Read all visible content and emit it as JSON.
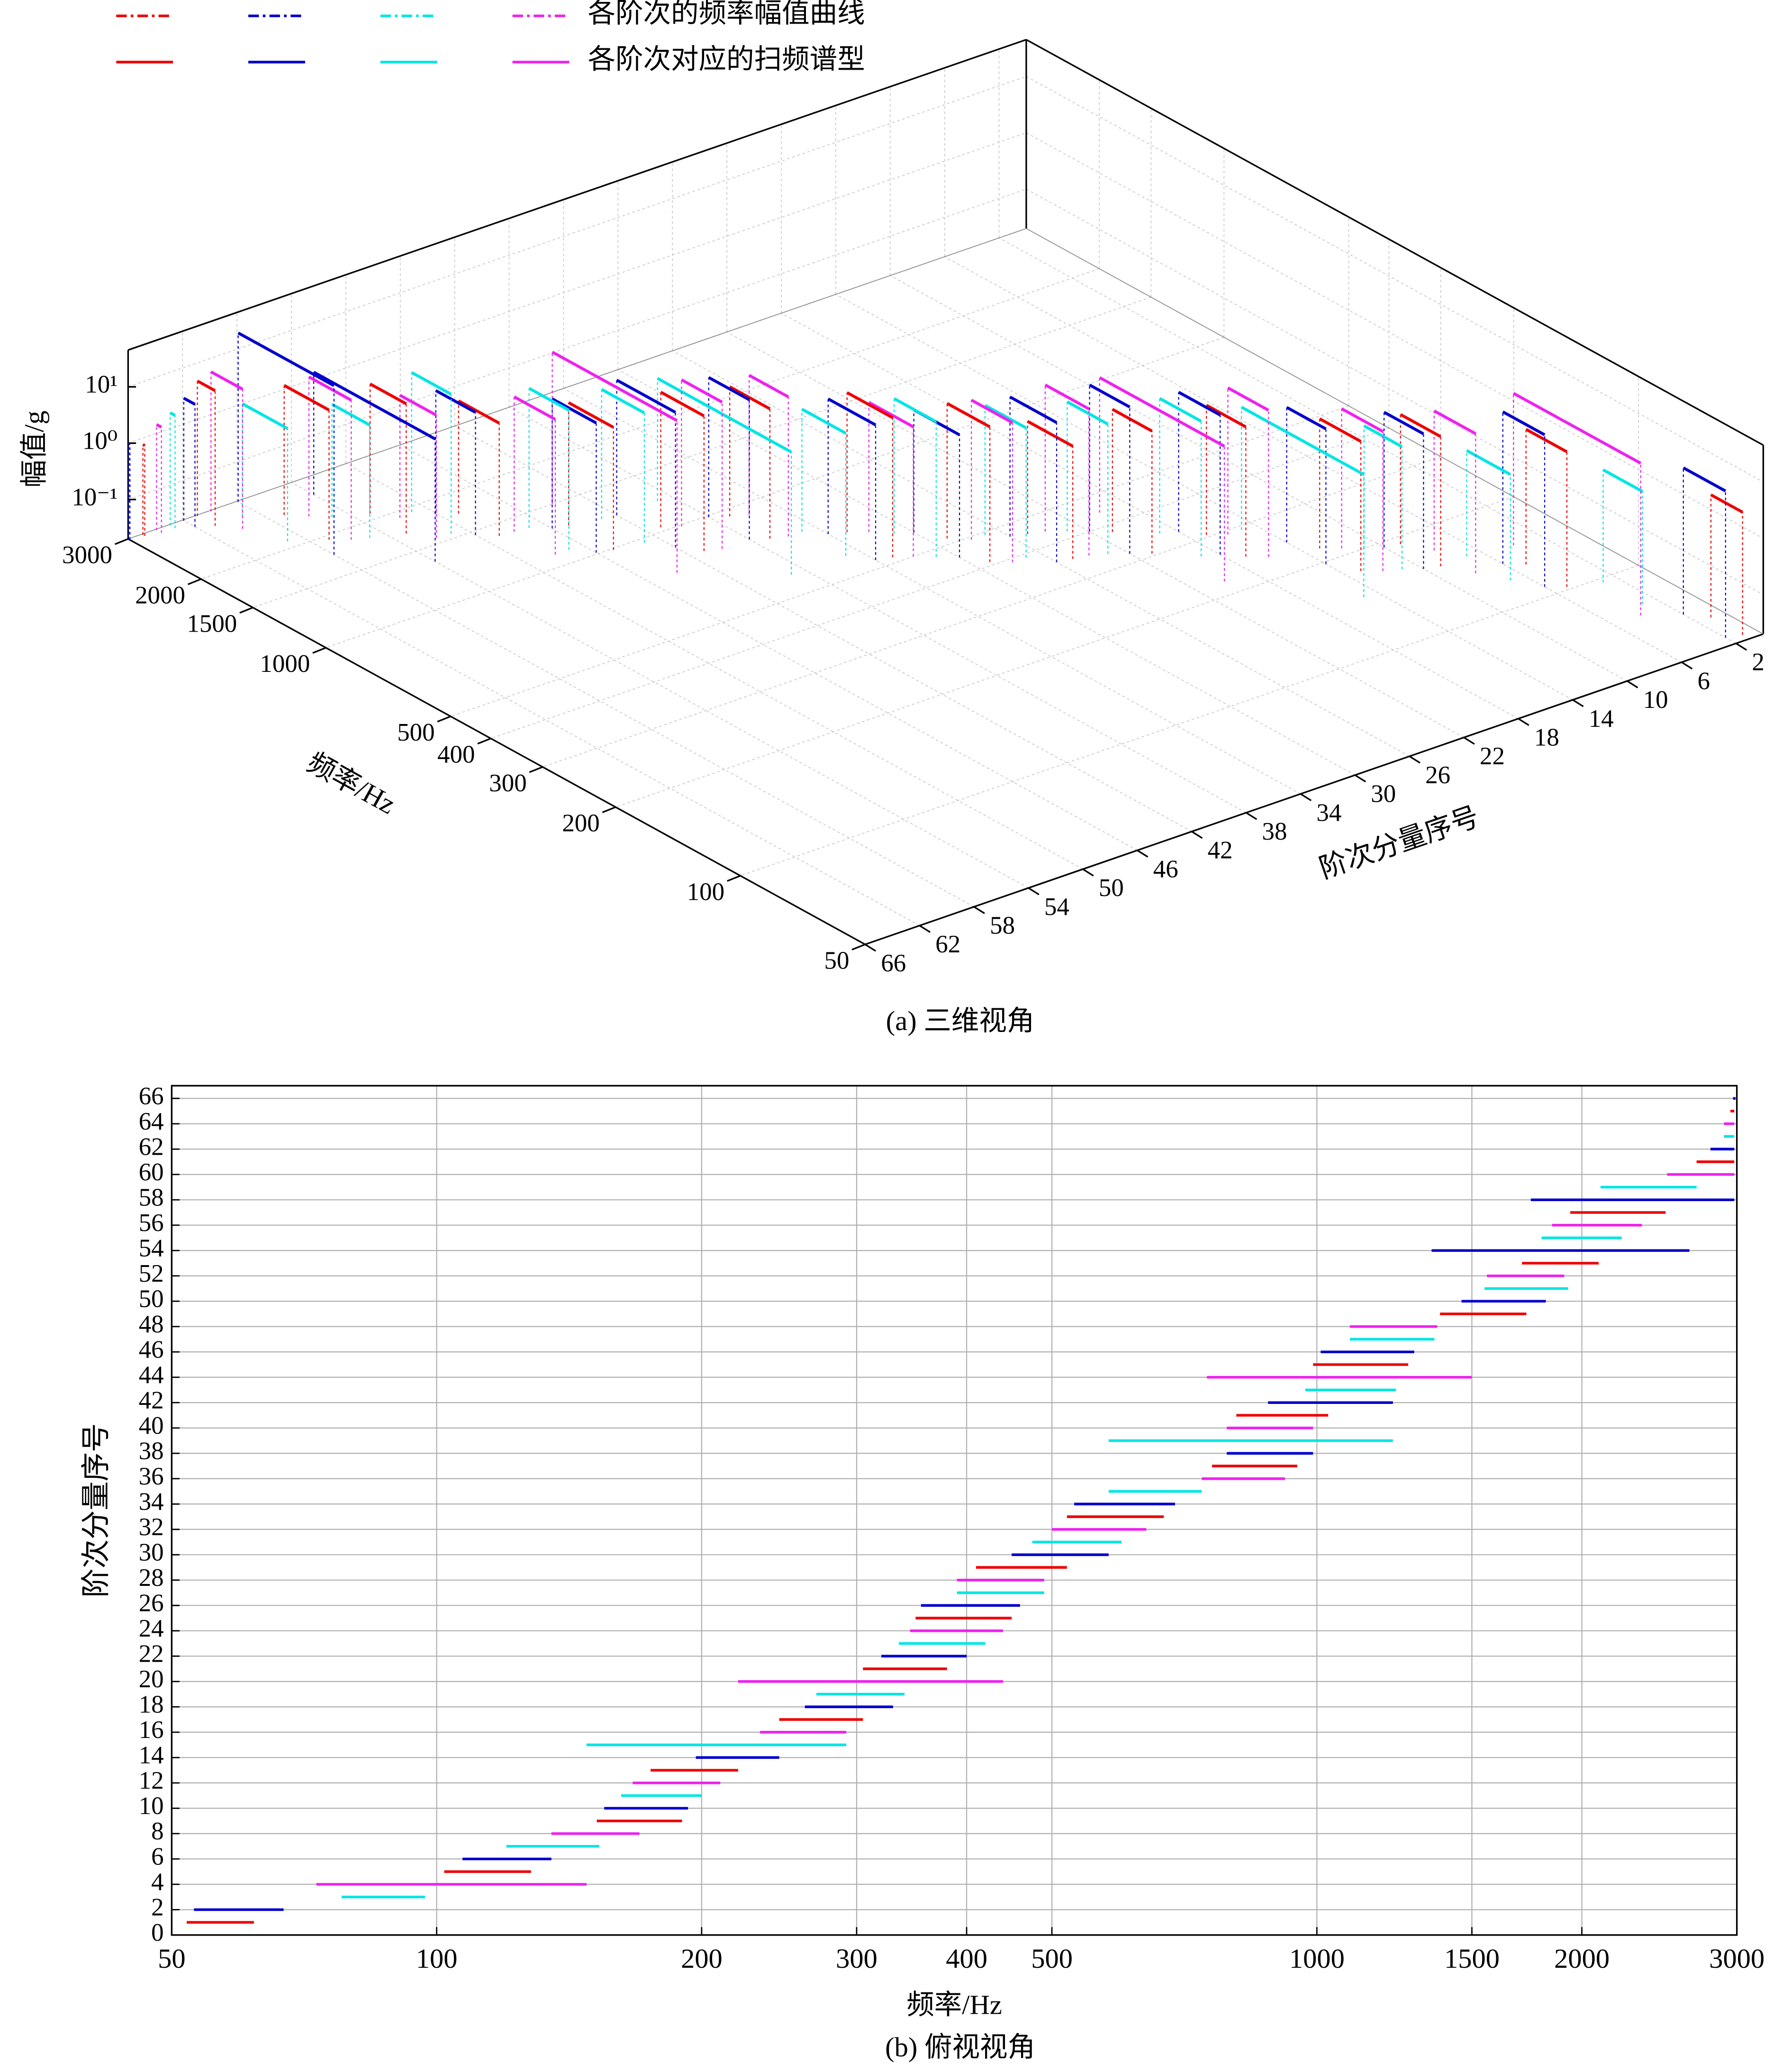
{
  "chart_data": [
    {
      "type": "line3d",
      "caption": "(a) 三维视角",
      "xlabel": "频率/Hz",
      "ylabel": "阶次分量序号",
      "zlabel": "幅值/g",
      "xlim": [
        50,
        3000
      ],
      "xticks": [
        50,
        100,
        200,
        300,
        400,
        500,
        1000,
        1500,
        2000,
        3000
      ],
      "xscale": "log",
      "ylim": [
        0,
        66
      ],
      "yticks": [
        2,
        6,
        10,
        14,
        18,
        22,
        26,
        30,
        34,
        38,
        42,
        46,
        50,
        54,
        58,
        62,
        66
      ],
      "zlim": [
        0.02,
        45
      ],
      "zscale": "log",
      "zticks": [
        {
          "value": 0.1,
          "label": "10⁻¹"
        },
        {
          "value": 1,
          "label": "10⁰"
        },
        {
          "value": 10,
          "label": "10¹"
        }
      ],
      "grid": true,
      "colors": [
        "#ee0000",
        "#0000cc",
        "#00e5e5",
        "#ee22ee"
      ],
      "legend": [
        {
          "name": null,
          "color": "#ee0000",
          "style": "dash-dot"
        },
        {
          "name": null,
          "color": "#0000cc",
          "style": "dash-dot"
        },
        {
          "name": null,
          "color": "#00e5e5",
          "style": "dash-dot"
        },
        {
          "name": "各阶次的频率幅值曲线",
          "color": "#ee22ee",
          "style": "dash-dot"
        },
        {
          "name": null,
          "color": "#ee0000",
          "style": "solid"
        },
        {
          "name": null,
          "color": "#0000cc",
          "style": "solid"
        },
        {
          "name": null,
          "color": "#00e5e5",
          "style": "solid"
        },
        {
          "name": "各阶次对应的扫频谱型",
          "color": "#ee22ee",
          "style": "solid"
        }
      ],
      "segments": [
        {
          "order": 1,
          "start": 52,
          "end": 62,
          "amplitude": 3
        },
        {
          "order": 2,
          "start": 53,
          "end": 67,
          "amplitude": 8
        },
        {
          "order": 3,
          "start": 78,
          "end": 97,
          "amplitude": 2
        },
        {
          "order": 4,
          "start": 73,
          "end": 148,
          "amplitude": 10
        },
        {
          "order": 5,
          "start": 102,
          "end": 128,
          "amplitude": 5
        },
        {
          "order": 6,
          "start": 107,
          "end": 135,
          "amplitude": 10
        },
        {
          "order": 7,
          "start": 120,
          "end": 153,
          "amplitude": 1.5
        },
        {
          "order": 8,
          "start": 135,
          "end": 170,
          "amplitude": 6
        },
        {
          "order": 9,
          "start": 152,
          "end": 190,
          "amplitude": 4
        },
        {
          "order": 10,
          "start": 155,
          "end": 193,
          "amplitude": 5
        },
        {
          "order": 11,
          "start": 162,
          "end": 200,
          "amplitude": 3
        },
        {
          "order": 12,
          "start": 167,
          "end": 210,
          "amplitude": 6
        },
        {
          "order": 13,
          "start": 175,
          "end": 220,
          "amplitude": 4
        },
        {
          "order": 14,
          "start": 197,
          "end": 245,
          "amplitude": 5
        },
        {
          "order": 15,
          "start": 148,
          "end": 292,
          "amplitude": 3
        },
        {
          "order": 16,
          "start": 233,
          "end": 292,
          "amplitude": 8
        },
        {
          "order": 17,
          "start": 245,
          "end": 305,
          "amplitude": 4
        },
        {
          "order": 18,
          "start": 262,
          "end": 330,
          "amplitude": 6
        },
        {
          "order": 19,
          "start": 270,
          "end": 340,
          "amplitude": 5
        },
        {
          "order": 20,
          "start": 220,
          "end": 440,
          "amplitude": 5
        },
        {
          "order": 21,
          "start": 305,
          "end": 380,
          "amplitude": 3
        },
        {
          "order": 22,
          "start": 320,
          "end": 400,
          "amplitude": 8
        },
        {
          "order": 23,
          "start": 335,
          "end": 420,
          "amplitude": 4
        },
        {
          "order": 24,
          "start": 345,
          "end": 440,
          "amplitude": 8
        },
        {
          "order": 25,
          "start": 350,
          "end": 450,
          "amplitude": 2
        },
        {
          "order": 26,
          "start": 355,
          "end": 460,
          "amplitude": 6
        },
        {
          "order": 27,
          "start": 390,
          "end": 490,
          "amplitude": 4
        },
        {
          "order": 28,
          "start": 390,
          "end": 490,
          "amplitude": 6
        },
        {
          "order": 29,
          "start": 410,
          "end": 520,
          "amplitude": 5
        },
        {
          "order": 30,
          "start": 450,
          "end": 580,
          "amplitude": 3
        },
        {
          "order": 31,
          "start": 475,
          "end": 600,
          "amplitude": 5
        },
        {
          "order": 32,
          "start": 500,
          "end": 640,
          "amplitude": 4
        },
        {
          "order": 33,
          "start": 520,
          "end": 670,
          "amplitude": 6
        },
        {
          "order": 34,
          "start": 530,
          "end": 690,
          "amplitude": 5
        },
        {
          "order": 35,
          "start": 580,
          "end": 740,
          "amplitude": 3
        },
        {
          "order": 36,
          "start": 740,
          "end": 920,
          "amplitude": 6
        },
        {
          "order": 37,
          "start": 760,
          "end": 950,
          "amplitude": 4
        },
        {
          "order": 38,
          "start": 790,
          "end": 990,
          "amplitude": 6
        },
        {
          "order": 39,
          "start": 580,
          "end": 1220,
          "amplitude": 3
        },
        {
          "order": 40,
          "start": 790,
          "end": 990,
          "amplitude": 8
        },
        {
          "order": 41,
          "start": 810,
          "end": 1030,
          "amplitude": 5
        },
        {
          "order": 42,
          "start": 880,
          "end": 1220,
          "amplitude": 5
        },
        {
          "order": 43,
          "start": 970,
          "end": 1230,
          "amplitude": 4
        },
        {
          "order": 44,
          "start": 750,
          "end": 1500,
          "amplitude": 10
        },
        {
          "order": 45,
          "start": 990,
          "end": 1270,
          "amplitude": 3
        },
        {
          "order": 46,
          "start": 1010,
          "end": 1290,
          "amplitude": 4
        },
        {
          "order": 47,
          "start": 1090,
          "end": 1360,
          "amplitude": 6
        },
        {
          "order": 48,
          "start": 1090,
          "end": 1370,
          "amplitude": 5
        },
        {
          "order": 49,
          "start": 1380,
          "end": 1730,
          "amplitude": 2
        },
        {
          "order": 50,
          "start": 1460,
          "end": 1820,
          "amplitude": 3
        },
        {
          "order": 51,
          "start": 1550,
          "end": 1930,
          "amplitude": 6
        },
        {
          "order": 52,
          "start": 1560,
          "end": 1910,
          "amplitude": 3
        },
        {
          "order": 53,
          "start": 1710,
          "end": 2090,
          "amplitude": 4
        },
        {
          "order": 54,
          "start": 1350,
          "end": 2650,
          "amplitude": 3
        },
        {
          "order": 55,
          "start": 1800,
          "end": 2220,
          "amplitude": 2
        },
        {
          "order": 56,
          "start": 1850,
          "end": 2340,
          "amplitude": 6
        },
        {
          "order": 57,
          "start": 1940,
          "end": 2490,
          "amplitude": 4
        },
        {
          "order": 58,
          "start": 1750,
          "end": 2980,
          "amplitude": 20
        },
        {
          "order": 59,
          "start": 2100,
          "end": 2700,
          "amplitude": 2
        },
        {
          "order": 60,
          "start": 2500,
          "end": 2980,
          "amplitude": 6
        },
        {
          "order": 61,
          "start": 2700,
          "end": 2980,
          "amplitude": 5
        },
        {
          "order": 62,
          "start": 2800,
          "end": 2980,
          "amplitude": 3
        },
        {
          "order": 63,
          "start": 2900,
          "end": 2980,
          "amplitude": 2
        },
        {
          "order": 64,
          "start": 2900,
          "end": 2980,
          "amplitude": 1.5
        },
        {
          "order": 65,
          "start": 2950,
          "end": 2980,
          "amplitude": 0.8
        },
        {
          "order": 66,
          "start": 2970,
          "end": 2990,
          "amplitude": 1
        }
      ]
    },
    {
      "type": "range",
      "caption": "(b) 俯视视角",
      "xlabel": "频率/Hz",
      "ylabel": "阶次分量序号",
      "xlim": [
        50,
        3000
      ],
      "xticks": [
        50,
        100,
        200,
        300,
        400,
        500,
        1000,
        1500,
        2000,
        3000
      ],
      "xscale": "log",
      "ylim": [
        0,
        67
      ],
      "yticks": [
        0,
        2,
        4,
        6,
        8,
        10,
        12,
        14,
        16,
        18,
        20,
        22,
        24,
        26,
        28,
        30,
        32,
        34,
        36,
        38,
        40,
        42,
        44,
        46,
        48,
        50,
        52,
        54,
        56,
        58,
        60,
        62,
        64,
        66
      ],
      "grid": true,
      "colors": [
        "#ee0000",
        "#0000cc",
        "#00e5e5",
        "#ee22ee"
      ],
      "segments": [
        {
          "order": 1,
          "start": 52,
          "end": 62
        },
        {
          "order": 2,
          "start": 53,
          "end": 67
        },
        {
          "order": 3,
          "start": 78,
          "end": 97
        },
        {
          "order": 4,
          "start": 73,
          "end": 148
        },
        {
          "order": 5,
          "start": 102,
          "end": 128
        },
        {
          "order": 6,
          "start": 107,
          "end": 135
        },
        {
          "order": 7,
          "start": 120,
          "end": 153
        },
        {
          "order": 8,
          "start": 135,
          "end": 170
        },
        {
          "order": 9,
          "start": 152,
          "end": 190
        },
        {
          "order": 10,
          "start": 155,
          "end": 193
        },
        {
          "order": 11,
          "start": 162,
          "end": 200
        },
        {
          "order": 12,
          "start": 167,
          "end": 210
        },
        {
          "order": 13,
          "start": 175,
          "end": 220
        },
        {
          "order": 14,
          "start": 197,
          "end": 245
        },
        {
          "order": 15,
          "start": 148,
          "end": 292
        },
        {
          "order": 16,
          "start": 233,
          "end": 292
        },
        {
          "order": 17,
          "start": 245,
          "end": 305
        },
        {
          "order": 18,
          "start": 262,
          "end": 330
        },
        {
          "order": 19,
          "start": 270,
          "end": 340
        },
        {
          "order": 20,
          "start": 220,
          "end": 440
        },
        {
          "order": 21,
          "start": 305,
          "end": 380
        },
        {
          "order": 22,
          "start": 320,
          "end": 400
        },
        {
          "order": 23,
          "start": 335,
          "end": 420
        },
        {
          "order": 24,
          "start": 345,
          "end": 440
        },
        {
          "order": 25,
          "start": 350,
          "end": 450
        },
        {
          "order": 26,
          "start": 355,
          "end": 460
        },
        {
          "order": 27,
          "start": 390,
          "end": 490
        },
        {
          "order": 28,
          "start": 390,
          "end": 490
        },
        {
          "order": 29,
          "start": 410,
          "end": 520
        },
        {
          "order": 30,
          "start": 450,
          "end": 580
        },
        {
          "order": 31,
          "start": 475,
          "end": 600
        },
        {
          "order": 32,
          "start": 500,
          "end": 640
        },
        {
          "order": 33,
          "start": 520,
          "end": 670
        },
        {
          "order": 34,
          "start": 530,
          "end": 690
        },
        {
          "order": 35,
          "start": 580,
          "end": 740
        },
        {
          "order": 36,
          "start": 740,
          "end": 920
        },
        {
          "order": 37,
          "start": 760,
          "end": 950
        },
        {
          "order": 38,
          "start": 790,
          "end": 990
        },
        {
          "order": 39,
          "start": 580,
          "end": 1220
        },
        {
          "order": 40,
          "start": 790,
          "end": 990
        },
        {
          "order": 41,
          "start": 810,
          "end": 1030
        },
        {
          "order": 42,
          "start": 880,
          "end": 1220
        },
        {
          "order": 43,
          "start": 970,
          "end": 1230
        },
        {
          "order": 44,
          "start": 750,
          "end": 1500
        },
        {
          "order": 45,
          "start": 990,
          "end": 1270
        },
        {
          "order": 46,
          "start": 1010,
          "end": 1290
        },
        {
          "order": 47,
          "start": 1090,
          "end": 1360
        },
        {
          "order": 48,
          "start": 1090,
          "end": 1370
        },
        {
          "order": 49,
          "start": 1380,
          "end": 1730
        },
        {
          "order": 50,
          "start": 1460,
          "end": 1820
        },
        {
          "order": 51,
          "start": 1550,
          "end": 1930
        },
        {
          "order": 52,
          "start": 1560,
          "end": 1910
        },
        {
          "order": 53,
          "start": 1710,
          "end": 2090
        },
        {
          "order": 54,
          "start": 1350,
          "end": 2650
        },
        {
          "order": 55,
          "start": 1800,
          "end": 2220
        },
        {
          "order": 56,
          "start": 1850,
          "end": 2340
        },
        {
          "order": 57,
          "start": 1940,
          "end": 2490
        },
        {
          "order": 58,
          "start": 1750,
          "end": 2980
        },
        {
          "order": 59,
          "start": 2100,
          "end": 2700
        },
        {
          "order": 60,
          "start": 2500,
          "end": 2980
        },
        {
          "order": 61,
          "start": 2700,
          "end": 2980
        },
        {
          "order": 62,
          "start": 2800,
          "end": 2980
        },
        {
          "order": 63,
          "start": 2900,
          "end": 2980
        },
        {
          "order": 64,
          "start": 2900,
          "end": 2980
        },
        {
          "order": 65,
          "start": 2950,
          "end": 2980
        },
        {
          "order": 66,
          "start": 2970,
          "end": 2990
        }
      ]
    }
  ]
}
